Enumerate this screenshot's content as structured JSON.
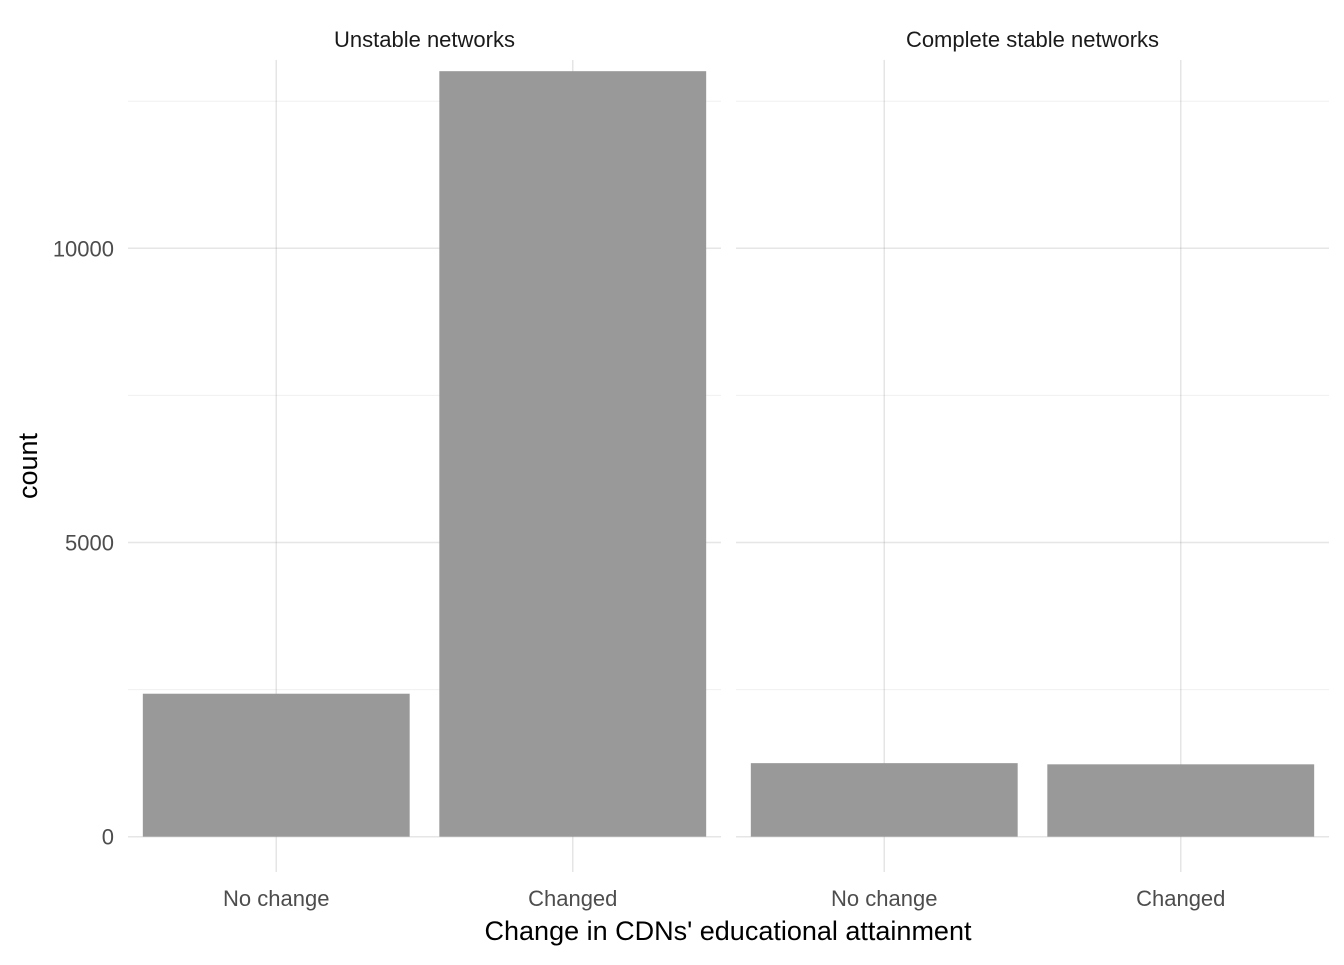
{
  "chart_data": {
    "type": "bar",
    "xlabel": "Change in CDNs' educational attainment",
    "ylabel": "count",
    "categories": [
      "No change",
      "Changed"
    ],
    "ylim": [
      -600,
      13200
    ],
    "yticks": [
      0,
      5000,
      10000
    ],
    "panels": [
      {
        "title": "Unstable networks",
        "values": [
          2430,
          13010
        ]
      },
      {
        "title": "Complete stable networks",
        "values": [
          1250,
          1230
        ]
      }
    ],
    "bar_color": "#999999",
    "grid": true
  }
}
